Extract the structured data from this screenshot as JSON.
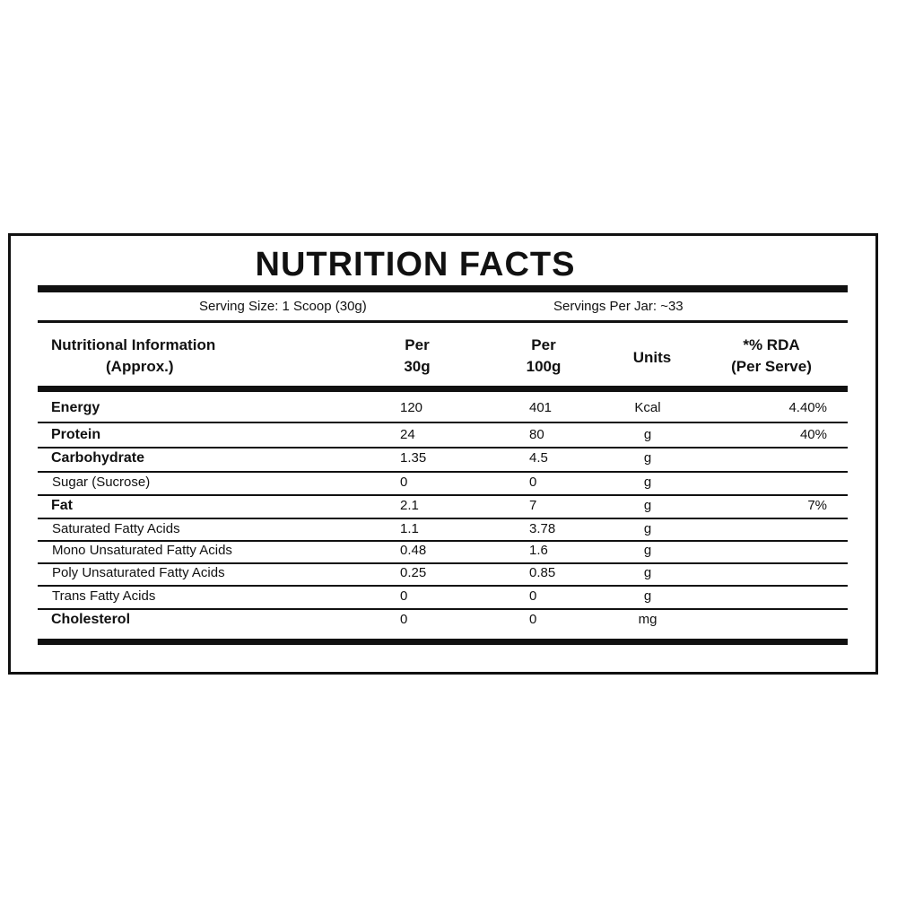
{
  "title": "NUTRITION FACTS",
  "serving_size": "Serving Size: 1 Scoop (30g)",
  "servings_per_jar": "Servings Per Jar: ~33",
  "table": {
    "header": {
      "name": [
        "Nutritional Information",
        "(Approx.)"
      ],
      "per_30g": [
        "Per",
        "30g"
      ],
      "per_100g": [
        "Per",
        "100g"
      ],
      "unit": [
        "Units"
      ],
      "rda": [
        "*% RDA",
        "(Per Serve)"
      ]
    },
    "rows": [
      {
        "name": "Energy",
        "per_30g": 120,
        "per_100g": 401,
        "unit": "Kcal",
        "rda": "4.40%",
        "bold": true
      },
      {
        "name": "Protein",
        "per_30g": 24,
        "per_100g": 80,
        "unit": "g",
        "rda": "40%",
        "bold": true
      },
      {
        "name": "Carbohydrate",
        "per_30g": 1.35,
        "per_100g": 4.5,
        "unit": "g",
        "bold": true
      },
      {
        "name": "Sugar (Sucrose)",
        "per_30g": 0,
        "per_100g": 0,
        "unit": "g",
        "bold": false
      },
      {
        "name": "Fat",
        "per_30g": 2.1,
        "per_100g": 7,
        "unit": "g",
        "rda": "7%",
        "bold": true
      },
      {
        "name": "Saturated Fatty Acids",
        "per_30g": 1.1,
        "per_100g": 3.78,
        "unit": "g",
        "bold": false
      },
      {
        "name": "Mono Unsaturated Fatty Acids",
        "per_30g": 0.48,
        "per_100g": 1.6,
        "unit": "g",
        "bold": false
      },
      {
        "name": "Poly Unsaturated Fatty Acids",
        "per_30g": 0.25,
        "per_100g": 0.85,
        "unit": "g",
        "bold": false
      },
      {
        "name": "Trans Fatty Acids",
        "per_30g": 0,
        "per_100g": 0,
        "unit": "g",
        "bold": false
      },
      {
        "name": "Cholesterol",
        "per_30g": 0,
        "per_100g": 0,
        "unit": "mg",
        "bold": true
      }
    ]
  }
}
